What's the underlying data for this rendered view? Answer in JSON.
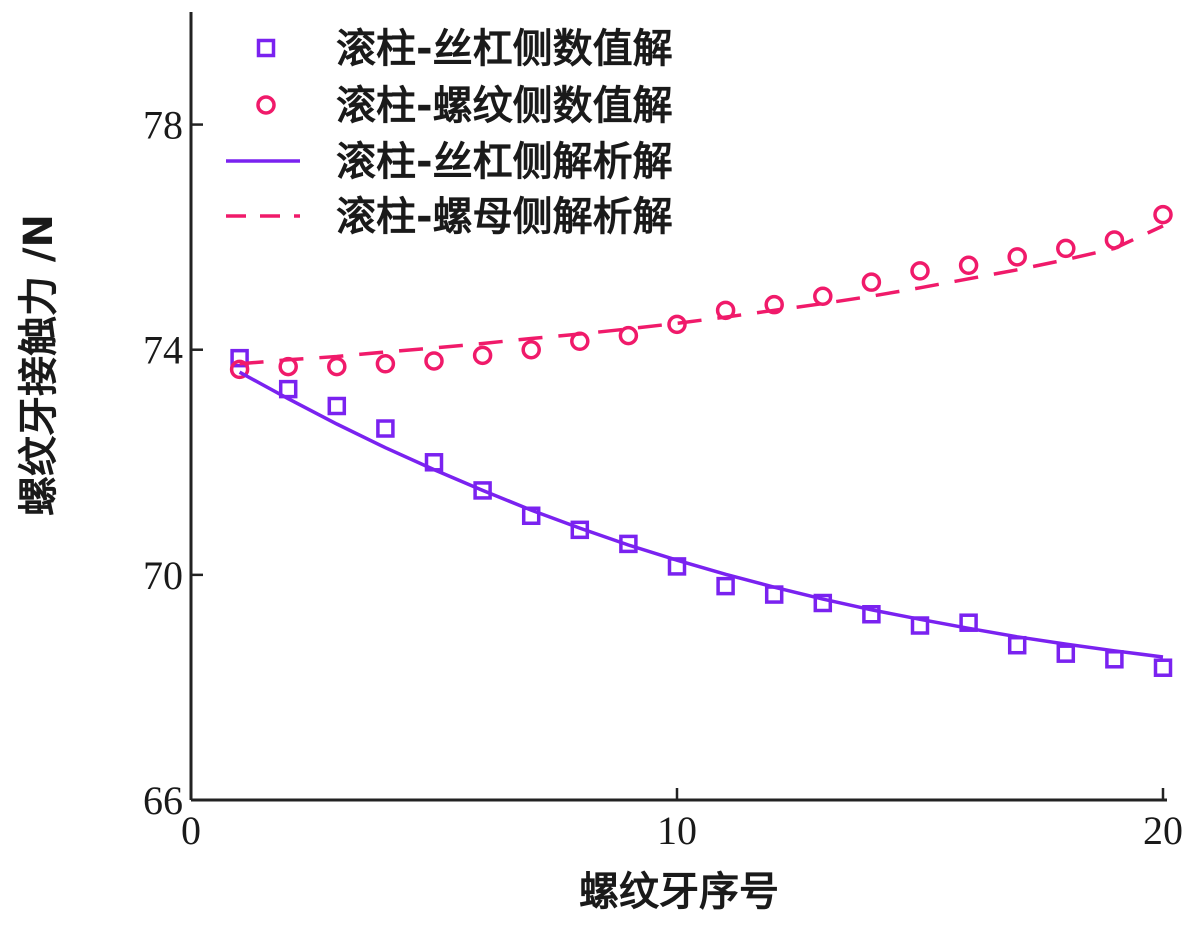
{
  "chart_data": {
    "type": "line",
    "xlabel": "螺纹牙序号",
    "ylabel": "螺纹牙接触力 /N",
    "xlim": [
      0,
      20
    ],
    "ylim": [
      66,
      80
    ],
    "xticks": [
      0,
      10,
      20
    ],
    "yticks": [
      66,
      70,
      74,
      78
    ],
    "legend_position": "top-left",
    "x": [
      1,
      2,
      3,
      4,
      5,
      6,
      7,
      8,
      9,
      10,
      11,
      12,
      13,
      14,
      15,
      16,
      17,
      18,
      19,
      20
    ],
    "series": [
      {
        "name": "滚柱-丝杠侧数值解",
        "kind": "scatter",
        "marker": "square",
        "color": "#7a22f0",
        "values": [
          73.85,
          73.3,
          73.0,
          72.6,
          72.0,
          71.5,
          71.05,
          70.8,
          70.55,
          70.15,
          69.8,
          69.65,
          69.5,
          69.3,
          69.1,
          69.15,
          68.75,
          68.6,
          68.5,
          68.35
        ]
      },
      {
        "name": "滚柱-螺纹侧数值解",
        "kind": "scatter",
        "marker": "circle",
        "color": "#f01a6a",
        "values": [
          73.65,
          73.7,
          73.7,
          73.75,
          73.8,
          73.9,
          74.0,
          74.15,
          74.25,
          74.45,
          74.7,
          74.8,
          74.95,
          75.2,
          75.4,
          75.5,
          75.65,
          75.8,
          75.95,
          76.4
        ]
      },
      {
        "name": "滚柱-丝杠侧解析解",
        "kind": "line",
        "style": "solid",
        "color": "#7a22f0",
        "values": [
          73.6,
          73.13,
          72.68,
          72.26,
          71.87,
          71.5,
          71.15,
          70.83,
          70.53,
          70.26,
          70.01,
          69.78,
          69.57,
          69.38,
          69.21,
          69.05,
          68.9,
          68.77,
          68.65,
          68.54
        ]
      },
      {
        "name": "滚柱-螺母侧解析解",
        "kind": "line",
        "style": "dashed",
        "color": "#f01a6a",
        "values": [
          73.75,
          73.82,
          73.88,
          73.96,
          74.03,
          74.11,
          74.2,
          74.28,
          74.37,
          74.47,
          74.58,
          74.7,
          74.82,
          74.95,
          75.1,
          75.26,
          75.42,
          75.6,
          75.8,
          76.2
        ]
      }
    ]
  }
}
